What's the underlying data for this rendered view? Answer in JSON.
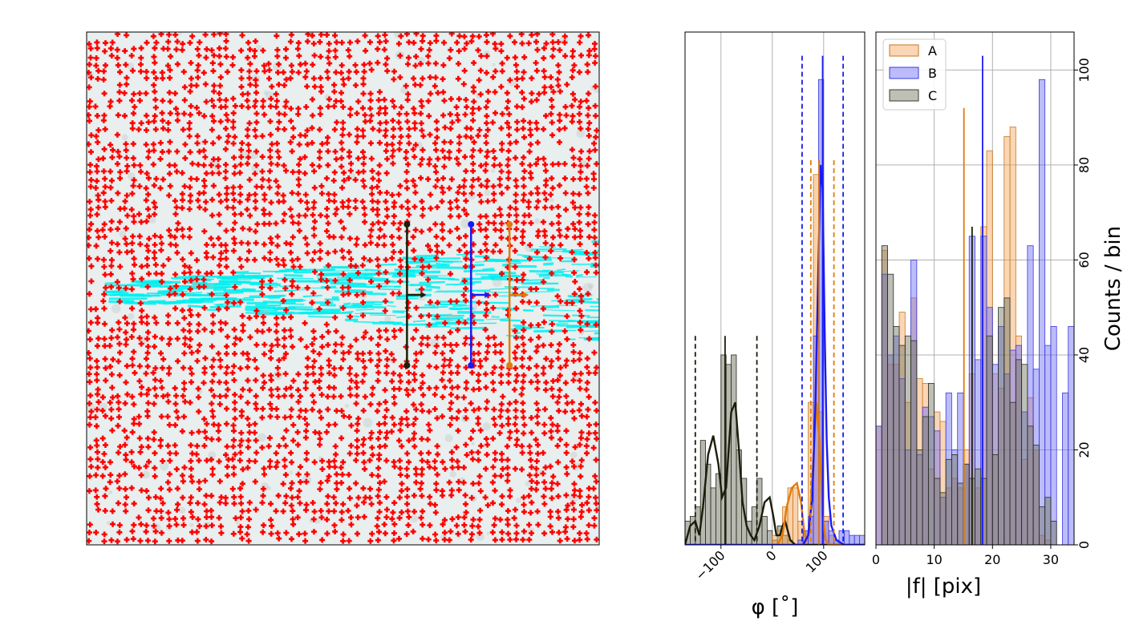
{
  "colors": {
    "A": "#f5a55c",
    "B": "#6a6af5",
    "C": "#6f7362",
    "A_line": "#e07b0c",
    "B_line": "#1a1af2",
    "C_line": "#1a1f0a",
    "marker": "#ff0000",
    "flow": "#00f0f0",
    "grid": "#b0b0b0"
  },
  "chart_data": [
    {
      "type": "image",
      "description_of_marks": "red cross markers over a gray/cyan field with three vertical probe lines",
      "probes": [
        {
          "name": "C",
          "x_frac": 0.625,
          "y_top_frac": 0.375,
          "y_bottom_frac": 0.65
        },
        {
          "name": "B",
          "x_frac": 0.75,
          "y_top_frac": 0.375,
          "y_bottom_frac": 0.65
        },
        {
          "name": "A",
          "x_frac": 0.825,
          "y_top_frac": 0.375,
          "y_bottom_frac": 0.65
        }
      ]
    },
    {
      "type": "bar",
      "xlabel": "φ [˚]",
      "ylabel": "",
      "xlim": [
        -170,
        180
      ],
      "ylim": [
        0,
        108
      ],
      "xticks": [
        -100,
        0,
        100
      ],
      "xtick_labels": [
        "−100",
        "0",
        "100"
      ],
      "grid": true,
      "bin_width": 10,
      "series": [
        {
          "name": "C",
          "bins": [
            [
              -165,
              5
            ],
            [
              -155,
              6
            ],
            [
              -145,
              8
            ],
            [
              -135,
              22
            ],
            [
              -125,
              17
            ],
            [
              -115,
              12
            ],
            [
              -105,
              15
            ],
            [
              -95,
              40
            ],
            [
              -85,
              38
            ],
            [
              -75,
              40
            ],
            [
              -65,
              20
            ],
            [
              -55,
              14
            ],
            [
              -45,
              5
            ],
            [
              -35,
              8
            ],
            [
              -25,
              14
            ],
            [
              -15,
              6
            ],
            [
              -5,
              3
            ],
            [
              5,
              1
            ],
            [
              15,
              4
            ],
            [
              25,
              2
            ],
            [
              35,
              1
            ]
          ]
        },
        {
          "name": "A",
          "bins": [
            [
              5,
              2
            ],
            [
              15,
              3
            ],
            [
              25,
              8
            ],
            [
              35,
              12
            ],
            [
              45,
              12
            ],
            [
              55,
              5
            ],
            [
              65,
              3
            ],
            [
              75,
              30
            ],
            [
              85,
              78
            ],
            [
              95,
              28
            ],
            [
              105,
              6
            ],
            [
              115,
              2
            ],
            [
              125,
              1
            ]
          ]
        },
        {
          "name": "B",
          "bins": [
            [
              55,
              1
            ],
            [
              65,
              3
            ],
            [
              75,
              6
            ],
            [
              85,
              44
            ],
            [
              95,
              98
            ],
            [
              105,
              5
            ],
            [
              115,
              3
            ],
            [
              125,
              1
            ],
            [
              135,
              3
            ],
            [
              145,
              3
            ],
            [
              155,
              2
            ],
            [
              165,
              2
            ],
            [
              175,
              2
            ]
          ]
        }
      ],
      "kde": [
        {
          "name": "C",
          "points": [
            [
              -170,
              0
            ],
            [
              -160,
              4
            ],
            [
              -150,
              5
            ],
            [
              -142,
              2
            ],
            [
              -135,
              8
            ],
            [
              -125,
              19
            ],
            [
              -115,
              23
            ],
            [
              -105,
              17
            ],
            [
              -98,
              10
            ],
            [
              -90,
              12
            ],
            [
              -80,
              28
            ],
            [
              -72,
              30
            ],
            [
              -65,
              20
            ],
            [
              -58,
              9
            ],
            [
              -50,
              4
            ],
            [
              -42,
              2
            ],
            [
              -35,
              1
            ],
            [
              -25,
              4
            ],
            [
              -15,
              9
            ],
            [
              -5,
              10
            ],
            [
              2,
              6
            ],
            [
              8,
              2
            ],
            [
              15,
              2
            ],
            [
              20,
              4
            ],
            [
              25,
              5
            ],
            [
              30,
              3
            ],
            [
              35,
              1
            ],
            [
              45,
              0
            ],
            [
              180,
              0
            ]
          ]
        },
        {
          "name": "A",
          "points": [
            [
              -170,
              0
            ],
            [
              10,
              0
            ],
            [
              20,
              2
            ],
            [
              28,
              8
            ],
            [
              38,
              12
            ],
            [
              48,
              13
            ],
            [
              56,
              9
            ],
            [
              62,
              3
            ],
            [
              66,
              1
            ],
            [
              72,
              3
            ],
            [
              80,
              18
            ],
            [
              86,
              30
            ],
            [
              92,
              22
            ],
            [
              98,
              6
            ],
            [
              104,
              1
            ],
            [
              110,
              0
            ],
            [
              180,
              0
            ]
          ]
        },
        {
          "name": "B",
          "points": [
            [
              -170,
              0
            ],
            [
              60,
              0
            ],
            [
              70,
              2
            ],
            [
              78,
              10
            ],
            [
              84,
              30
            ],
            [
              90,
              60
            ],
            [
              94,
              80
            ],
            [
              98,
              75
            ],
            [
              102,
              45
            ],
            [
              106,
              22
            ],
            [
              110,
              10
            ],
            [
              115,
              4
            ],
            [
              125,
              1
            ],
            [
              140,
              0
            ],
            [
              180,
              0
            ]
          ]
        }
      ],
      "vlines": [
        {
          "name": "C",
          "style": "solid",
          "x": -92,
          "top": 44
        },
        {
          "name": "C",
          "style": "dashed",
          "x": -150,
          "top": 44
        },
        {
          "name": "C",
          "style": "dashed",
          "x": -30,
          "top": 44
        },
        {
          "name": "A",
          "style": "solid",
          "x": 91,
          "top": 81
        },
        {
          "name": "A",
          "style": "dashed",
          "x": 75,
          "top": 81
        },
        {
          "name": "A",
          "style": "dashed",
          "x": 120,
          "top": 81
        },
        {
          "name": "B",
          "style": "solid",
          "x": 98,
          "top": 103
        },
        {
          "name": "B",
          "style": "dashed",
          "x": 58,
          "top": 103
        },
        {
          "name": "B",
          "style": "dashed",
          "x": 138,
          "top": 103
        }
      ]
    },
    {
      "type": "bar",
      "xlabel": "|f| [pix]",
      "ylabel": "Counts / bin",
      "xlim": [
        0,
        34
      ],
      "ylim": [
        0,
        108
      ],
      "xticks": [
        0,
        10,
        20,
        30
      ],
      "yticks": [
        0,
        20,
        40,
        60,
        80,
        100
      ],
      "grid": true,
      "legend": {
        "placement": "upper-left",
        "entries": [
          "A",
          "B",
          "C"
        ]
      },
      "bin_width": 1,
      "series": [
        {
          "name": "A",
          "values": [
            25,
            62,
            38,
            38,
            49,
            30,
            52,
            35,
            34,
            16,
            28,
            26,
            12,
            14,
            12,
            20,
            36,
            12,
            67,
            83,
            36,
            33,
            86,
            88,
            44,
            18,
            31,
            20,
            2,
            1,
            0,
            0,
            0,
            0
          ]
        },
        {
          "name": "B",
          "values": [
            25,
            57,
            40,
            44,
            35,
            20,
            60,
            19,
            29,
            27,
            24,
            10,
            32,
            20,
            32,
            17,
            65,
            39,
            65,
            50,
            38,
            46,
            36,
            41,
            42,
            28,
            63,
            37,
            98,
            42,
            46,
            0,
            32,
            46
          ]
        },
        {
          "name": "C",
          "values": [
            0,
            63,
            57,
            46,
            42,
            44,
            43,
            20,
            27,
            34,
            14,
            11,
            18,
            19,
            13,
            17,
            14,
            16,
            14,
            44,
            19,
            50,
            52,
            30,
            39,
            38,
            25,
            21,
            8,
            10,
            5,
            0,
            0,
            0
          ]
        }
      ],
      "vlines": [
        {
          "name": "A",
          "x": 15.1,
          "top": 92
        },
        {
          "name": "C",
          "x": 16.5,
          "top": 67
        },
        {
          "name": "B",
          "x": 18.3,
          "top": 103
        }
      ]
    }
  ]
}
